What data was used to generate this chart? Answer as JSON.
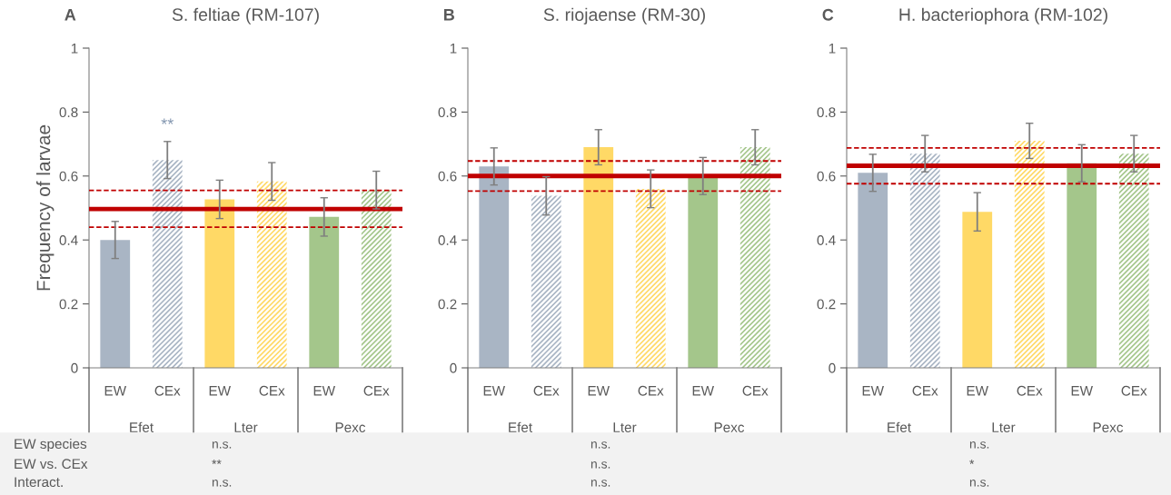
{
  "chart_data": [
    {
      "type": "bar",
      "title": "S. feltiae (RM-107)",
      "ylabel": "Frequency of larvae",
      "categories": [
        "EW",
        "CEx",
        "EW",
        "CEx",
        "EW",
        "CEx"
      ],
      "series": [
        {
          "values": [
            0.4,
            null,
            0.527,
            null,
            0.472,
            null
          ],
          "colors": [
            "#a9b5c4",
            null,
            "#ffd966",
            null,
            "#a4c68b",
            null
          ],
          "errors": [
            0.058,
            null,
            0.06,
            null,
            0.06,
            null
          ]
        },
        {
          "values": [
            null,
            0.65,
            null,
            0.583,
            null,
            0.556
          ],
          "colors": [
            null,
            "#a9b5c4",
            null,
            "#ffd966",
            null,
            "#a4c68b"
          ],
          "errors": [
            null,
            0.058,
            null,
            0.059,
            null,
            0.059
          ]
        }
      ],
      "ref_lines": [
        {
          "axis": "y",
          "value": 0.497,
          "color": "#c00000",
          "line_style": "solid"
        },
        {
          "axis": "y",
          "value": 0.555,
          "color": "#c00000",
          "line_style": "dashed"
        },
        {
          "axis": "y",
          "value": 0.44,
          "color": "#c00000",
          "line_style": "dashed"
        }
      ],
      "ylim": [
        0,
        1
      ],
      "yticks": [
        0,
        0.2,
        0.4,
        0.6,
        0.8,
        1
      ],
      "annotations": [
        "Efet",
        "Lter",
        "Pexc",
        "n.s.",
        "**",
        "n.s.",
        "A",
        "EW species",
        "EW vs. CEx",
        "Interact.",
        "**"
      ]
    },
    {
      "type": "bar",
      "title": "S. riojaense (RM-30)",
      "categories": [
        "EW",
        "CEx",
        "EW",
        "CEx",
        "EW",
        "CEx"
      ],
      "series": [
        {
          "values": [
            0.63,
            null,
            0.69,
            null,
            0.6,
            null
          ],
          "colors": [
            "#a9b5c4",
            null,
            "#ffd966",
            null,
            "#a4c68b",
            null
          ],
          "errors": [
            0.058,
            null,
            0.055,
            null,
            0.058,
            null
          ]
        },
        {
          "values": [
            null,
            0.538,
            null,
            0.56,
            null,
            0.69
          ],
          "colors": [
            null,
            "#a9b5c4",
            null,
            "#ffd966",
            null,
            "#a4c68b"
          ],
          "errors": [
            null,
            0.06,
            null,
            0.059,
            null,
            0.055
          ]
        }
      ],
      "ref_lines": [
        {
          "axis": "y",
          "value": 0.6,
          "color": "#c00000",
          "line_style": "solid"
        },
        {
          "axis": "y",
          "value": 0.647,
          "color": "#c00000",
          "line_style": "dashed"
        },
        {
          "axis": "y",
          "value": 0.553,
          "color": "#c00000",
          "line_style": "dashed"
        }
      ],
      "ylim": [
        0,
        1
      ],
      "yticks": [
        0,
        0.2,
        0.4,
        0.6,
        0.8,
        1
      ],
      "annotations": [
        "Efet",
        "Lter",
        "Pexc",
        "n.s.",
        "n.s.",
        "n.s.",
        "B"
      ]
    },
    {
      "type": "bar",
      "title": "H. bacteriophora (RM-102)",
      "categories": [
        "EW",
        "CEx",
        "EW",
        "CEx",
        "EW",
        "CEx"
      ],
      "series": [
        {
          "values": [
            0.61,
            null,
            0.488,
            null,
            0.64,
            null
          ],
          "colors": [
            "#a9b5c4",
            null,
            "#ffd966",
            null,
            "#a4c68b",
            null
          ],
          "errors": [
            0.058,
            null,
            0.06,
            null,
            0.058,
            null
          ]
        },
        {
          "values": [
            null,
            0.67,
            null,
            0.71,
            null,
            0.67
          ],
          "colors": [
            null,
            "#a9b5c4",
            null,
            "#ffd966",
            null,
            "#a4c68b"
          ],
          "errors": [
            null,
            0.057,
            null,
            0.055,
            null,
            0.057
          ]
        }
      ],
      "ref_lines": [
        {
          "axis": "y",
          "value": 0.632,
          "color": "#c00000",
          "line_style": "solid"
        },
        {
          "axis": "y",
          "value": 0.688,
          "color": "#c00000",
          "line_style": "dashed"
        },
        {
          "axis": "y",
          "value": 0.576,
          "color": "#c00000",
          "line_style": "dashed"
        }
      ],
      "ylim": [
        0,
        1
      ],
      "yticks": [
        0,
        0.2,
        0.4,
        0.6,
        0.8,
        1
      ],
      "annotations": [
        "Efet",
        "Lter",
        "Pexc",
        "n.s.",
        "*",
        "n.s.",
        "C"
      ]
    }
  ]
}
